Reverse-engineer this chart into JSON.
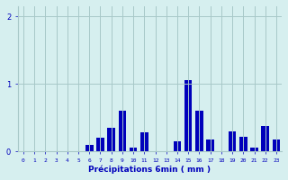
{
  "categories": [
    0,
    1,
    2,
    3,
    4,
    5,
    6,
    7,
    8,
    9,
    10,
    11,
    12,
    13,
    14,
    15,
    16,
    17,
    18,
    19,
    20,
    21,
    22,
    23
  ],
  "values": [
    0.0,
    0.0,
    0.0,
    0.0,
    0.0,
    0.0,
    0.1,
    0.2,
    0.35,
    0.6,
    0.05,
    0.28,
    0.0,
    0.0,
    0.15,
    1.05,
    0.6,
    0.17,
    0.0,
    0.3,
    0.22,
    0.05,
    0.38,
    0.18
  ],
  "bar_color": "#0000bb",
  "bg_color": "#d6efef",
  "grid_color": "#a8c8c8",
  "xlabel": "Précipitations 6min ( mm )",
  "xlabel_color": "#0000bb",
  "tick_color": "#0000bb",
  "ylim": [
    0,
    2.15
  ],
  "yticks": [
    0,
    1,
    2
  ],
  "bar_width": 0.7,
  "figwidth": 3.2,
  "figheight": 2.0,
  "dpi": 100
}
